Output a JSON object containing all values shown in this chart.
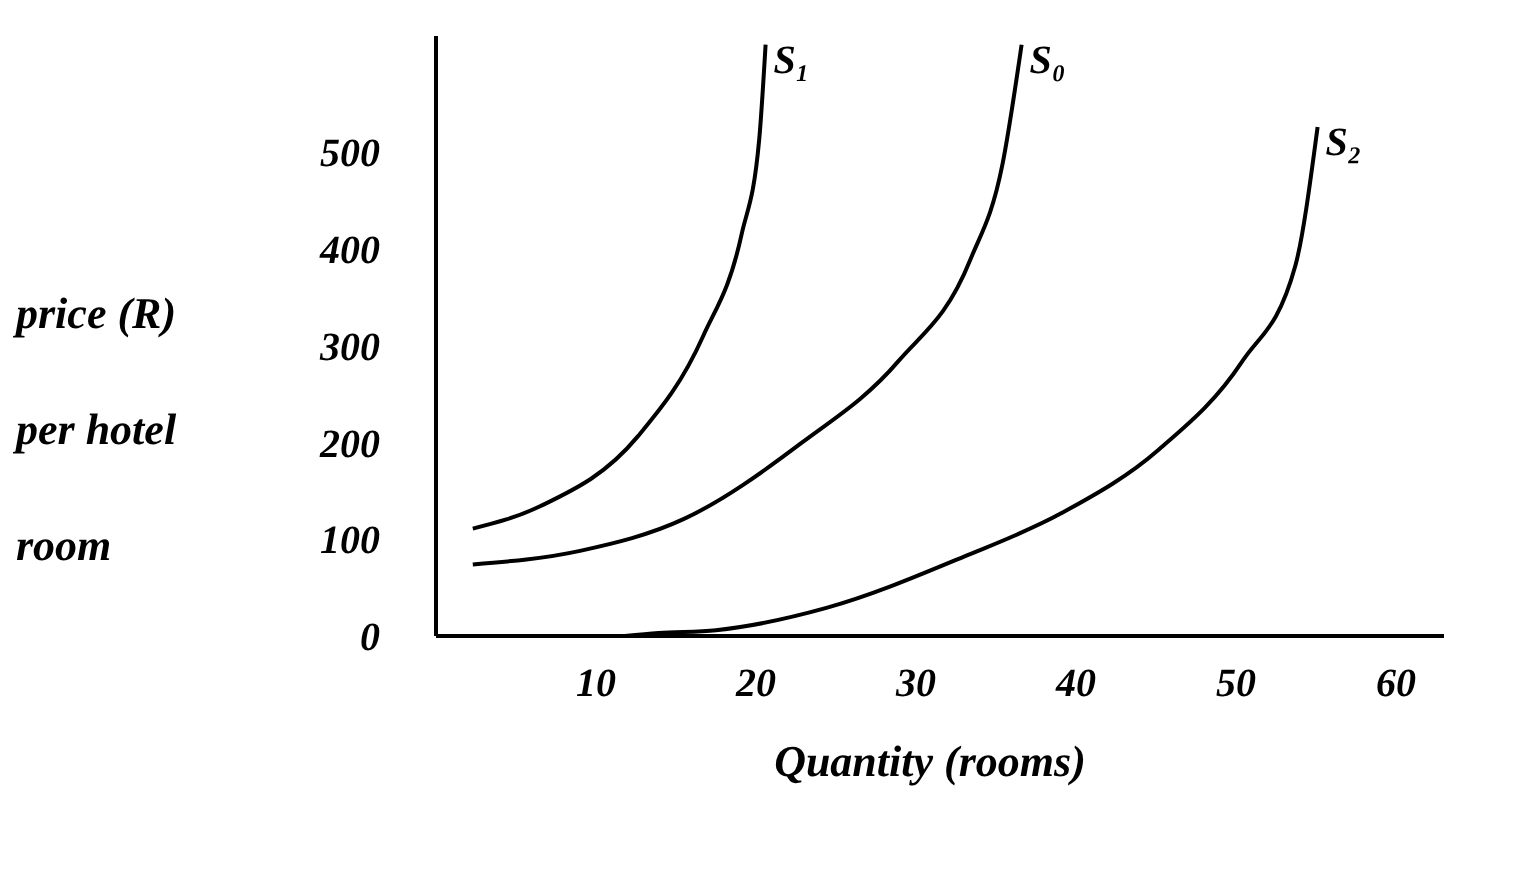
{
  "chart_data": {
    "type": "line",
    "xlabel": "Quantity (rooms)",
    "ylabel": "price (R) per hotel room",
    "xlim": [
      0,
      63
    ],
    "xticks": [
      10,
      20,
      30,
      40,
      50,
      60
    ],
    "ylim": [
      0,
      620
    ],
    "yticks": [
      0,
      100,
      200,
      300,
      400,
      500
    ],
    "grid": false,
    "legend": false,
    "marker": "none",
    "line_style": "solid",
    "series": [
      {
        "name": "S₁",
        "color": "#000000",
        "x": [
          2.3,
          6.5,
          12.6,
          16.7,
          19.1,
          20.2,
          20.6
        ],
        "values": [
          111,
          134,
          206,
          310,
          415,
          513,
          611
        ]
      },
      {
        "name": "S₀",
        "color": "#000000",
        "x": [
          2.3,
          9.0,
          15.5,
          22.8,
          28.9,
          33.4,
          35.4,
          36.6
        ],
        "values": [
          74,
          88,
          121,
          199,
          284,
          389,
          487,
          611
        ]
      },
      {
        "name": "S₂",
        "color": "#000000",
        "x": [
          11.8,
          13.9,
          17.5,
          24.4,
          33.0,
          39.1,
          45.2,
          50.4,
          53.7,
          55.1
        ],
        "values": [
          0,
          3,
          6,
          29,
          82,
          127,
          193,
          284,
          382,
          526
        ]
      }
    ]
  }
}
